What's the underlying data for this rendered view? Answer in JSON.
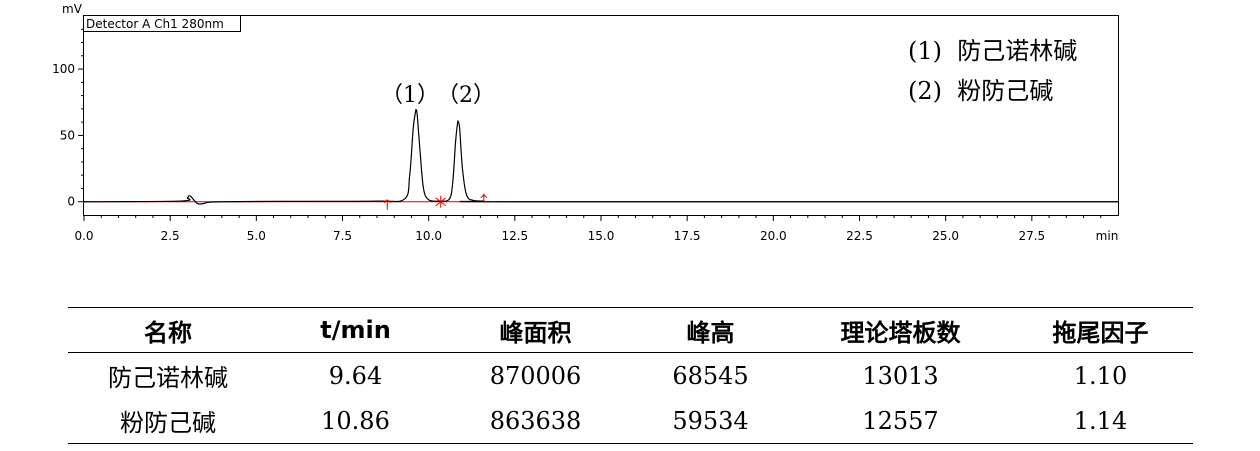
{
  "chart_data": {
    "type": "line",
    "ylabel": "mV",
    "xlabel": "min",
    "detector_label": "Detector A Ch1 280nm",
    "xlim": [
      0,
      30
    ],
    "ylim": [
      -10,
      140
    ],
    "xticks": [
      "0.0",
      "2.5",
      "5.0",
      "7.5",
      "10.0",
      "12.5",
      "15.0",
      "17.5",
      "20.0",
      "22.5",
      "25.0",
      "27.5"
    ],
    "yticks": [
      "0",
      "50",
      "100"
    ],
    "legend": [
      "(1)  防己诺林碱",
      "(2)  粉防己碱"
    ],
    "peak_labels": [
      "（1）",
      "（2）"
    ],
    "series": [
      {
        "x": [
          0,
          2.8,
          3.0,
          3.05,
          3.1,
          3.2,
          3.3,
          3.45,
          3.6,
          4.0,
          6.0,
          8.5,
          9.3,
          9.45,
          9.55,
          9.62,
          9.64,
          9.67,
          9.75,
          9.85,
          10.0,
          10.3,
          10.6,
          10.7,
          10.78,
          10.84,
          10.86,
          10.9,
          10.98,
          11.1,
          11.3,
          11.6,
          12.5,
          30
        ],
        "y": [
          0,
          0.5,
          3,
          4.5,
          4,
          1,
          -1.5,
          -1.5,
          -0.5,
          0,
          0.3,
          0.5,
          2,
          20,
          55,
          68,
          69,
          65,
          38,
          10,
          1.5,
          0.5,
          2,
          15,
          45,
          59.5,
          60,
          55,
          25,
          5,
          1,
          0.5,
          0,
          0
        ]
      }
    ],
    "integration_marks": [
      {
        "x": 8.8,
        "symbol": "tick-up"
      },
      {
        "x": 10.35,
        "symbol": "asterisk"
      },
      {
        "x": 11.6,
        "symbol": "tick-down"
      }
    ]
  },
  "table": {
    "headers": [
      "名称",
      "t/min",
      "峰面积",
      "峰高",
      "理论塔板数",
      "拖尾因子"
    ],
    "rows": [
      [
        "防己诺林碱",
        "9.64",
        "870006",
        "68545",
        "13013",
        "1.10"
      ],
      [
        "粉防己碱",
        "10.86",
        "863638",
        "59534",
        "12557",
        "1.14"
      ]
    ]
  }
}
